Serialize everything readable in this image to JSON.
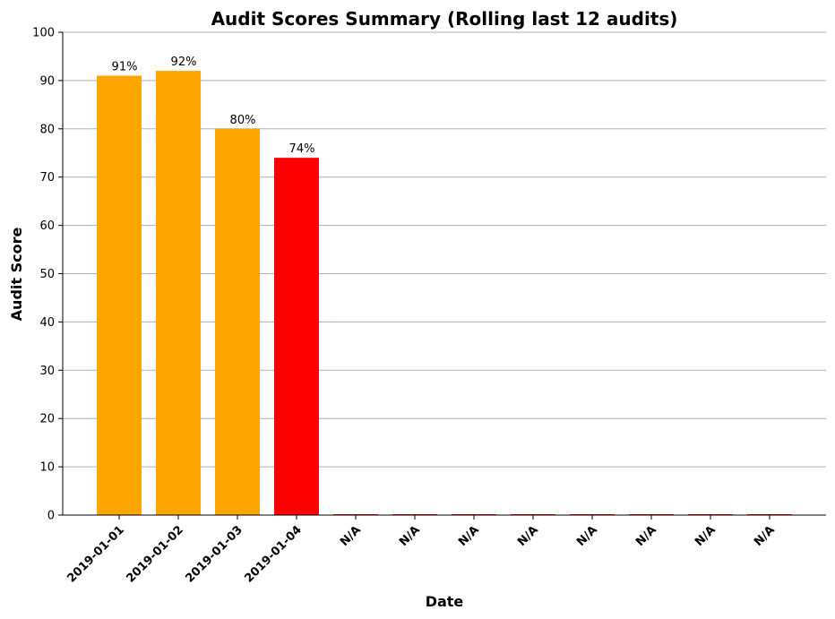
{
  "chart_data": {
    "type": "bar",
    "title": "Audit Scores Summary (Rolling last 12 audits)",
    "xlabel": "Date",
    "ylabel": "Audit Score",
    "ylim": [
      0,
      100
    ],
    "yticks": [
      0,
      10,
      20,
      30,
      40,
      50,
      60,
      70,
      80,
      90,
      100
    ],
    "grid": "y",
    "categories": [
      "2019-01-01",
      "2019-01-02",
      "2019-01-03",
      "2019-01-04",
      "N/A",
      "N/A",
      "N/A",
      "N/A",
      "N/A",
      "N/A",
      "N/A",
      "N/A"
    ],
    "values": [
      91,
      92,
      80,
      74,
      0,
      0,
      0,
      0,
      0,
      0,
      0,
      0
    ],
    "bar_labels": [
      "91%",
      "92%",
      "80%",
      "74%",
      "",
      "",
      "",
      "",
      "",
      "",
      "",
      ""
    ],
    "bar_colors": [
      "#ffa500",
      "#ffa500",
      "#ffa500",
      "#ff0000",
      "#ff0000",
      "#ff0000",
      "#ff0000",
      "#ff0000",
      "#ff0000",
      "#ff0000",
      "#ff0000",
      "#ff0000"
    ]
  }
}
